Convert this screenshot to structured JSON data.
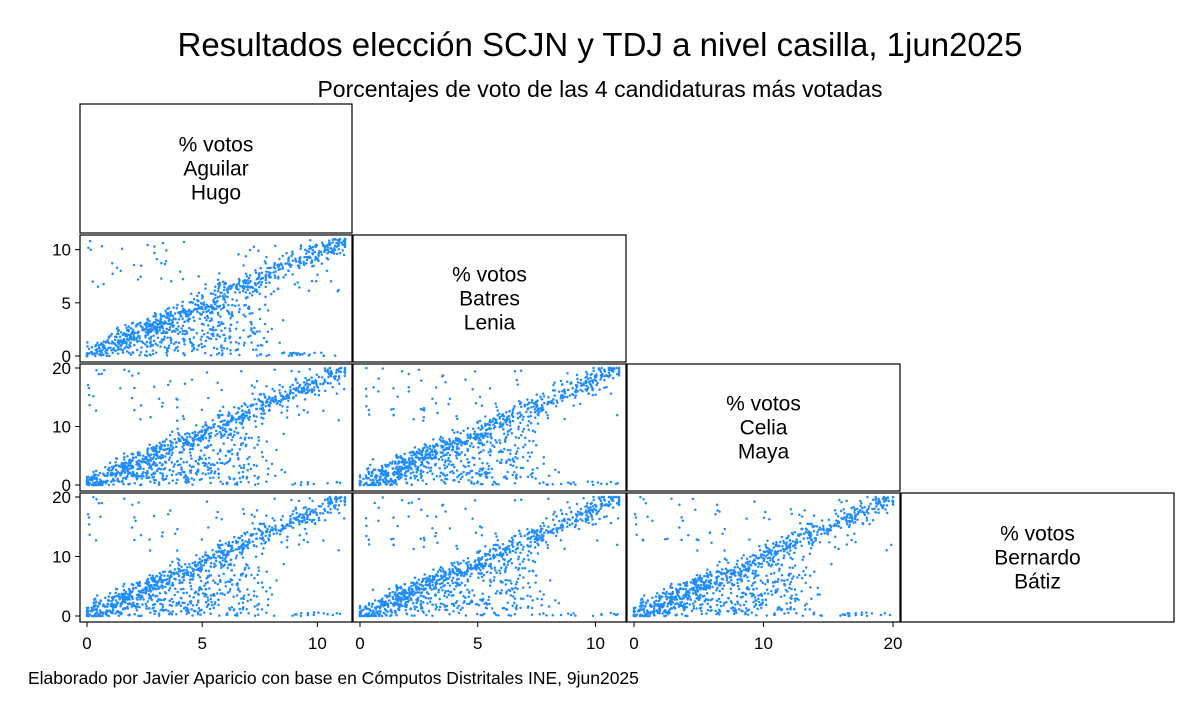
{
  "chart_data": {
    "type": "scatter-matrix",
    "title": "Resultados elección SCJN y TDJ a nivel casilla, 1jun2025",
    "subtitle": "Porcentajes de voto de las 4 candidaturas más votadas",
    "note": "Elaborado por Javier Aparicio con base en Cómputos Distritales INE, 9jun2025",
    "point_color": "#1e8cff",
    "grid": false,
    "variables": [
      {
        "label_lines": [
          "% votos",
          "Aguilar",
          "Hugo"
        ],
        "range": [
          0,
          11.2
        ],
        "ticks": [
          0,
          5,
          10
        ]
      },
      {
        "label_lines": [
          "% votos",
          "Batres",
          "Lenia"
        ],
        "range": [
          0,
          11
        ],
        "ticks": [
          0,
          5,
          10
        ]
      },
      {
        "label_lines": [
          "% votos",
          "Celia",
          "Maya"
        ],
        "range": [
          0,
          20
        ],
        "ticks": [
          0,
          10,
          20
        ]
      },
      {
        "label_lines": [
          "% votos",
          "Bernardo",
          "Bátiz"
        ],
        "range": [
          0,
          20
        ],
        "ticks": [
          0,
          10,
          20
        ]
      }
    ],
    "panels": [
      {
        "row": 1,
        "col": 0,
        "x_var": "Aguilar Hugo",
        "y_var": "Batres Lenia",
        "trend": "positive, strongly clustered along diagonal"
      },
      {
        "row": 2,
        "col": 0,
        "x_var": "Aguilar Hugo",
        "y_var": "Celia Maya",
        "trend": "positive"
      },
      {
        "row": 2,
        "col": 1,
        "x_var": "Batres Lenia",
        "y_var": "Celia Maya",
        "trend": "positive"
      },
      {
        "row": 3,
        "col": 0,
        "x_var": "Aguilar Hugo",
        "y_var": "Bernardo Bátiz",
        "trend": "positive"
      },
      {
        "row": 3,
        "col": 1,
        "x_var": "Batres Lenia",
        "y_var": "Bernardo Bátiz",
        "trend": "positive"
      },
      {
        "row": 3,
        "col": 2,
        "x_var": "Celia Maya",
        "y_var": "Bernardo Bátiz",
        "trend": "positive"
      }
    ]
  }
}
